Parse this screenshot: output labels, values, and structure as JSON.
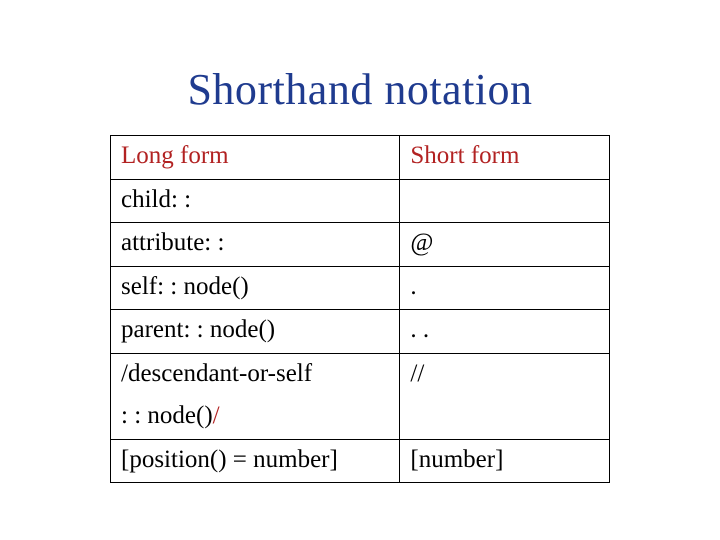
{
  "title": {
    "text": "Shorthand notation",
    "color": "#1f3b8f",
    "fontsize": 44
  },
  "table": {
    "header_color": "#b22222",
    "body_color": "#000000",
    "cols": [
      {
        "width_pct": 58
      },
      {
        "width_pct": 42
      }
    ],
    "header": {
      "long": "Long form",
      "short": "Short form"
    },
    "rows": [
      {
        "long": "child: :",
        "short": ""
      },
      {
        "long": "attribute: :",
        "short": "@"
      },
      {
        "long": "self: : node()",
        "short": "."
      },
      {
        "long": "parent: : node()",
        "short": ". ."
      },
      {
        "long_a": "/descendant-or-self",
        "long_b_pre": ": : node()",
        "long_b_slash": "/",
        "slash_color": "#b22222",
        "short": "//"
      },
      {
        "long": "[position() = number]",
        "short": "[number]"
      }
    ]
  }
}
